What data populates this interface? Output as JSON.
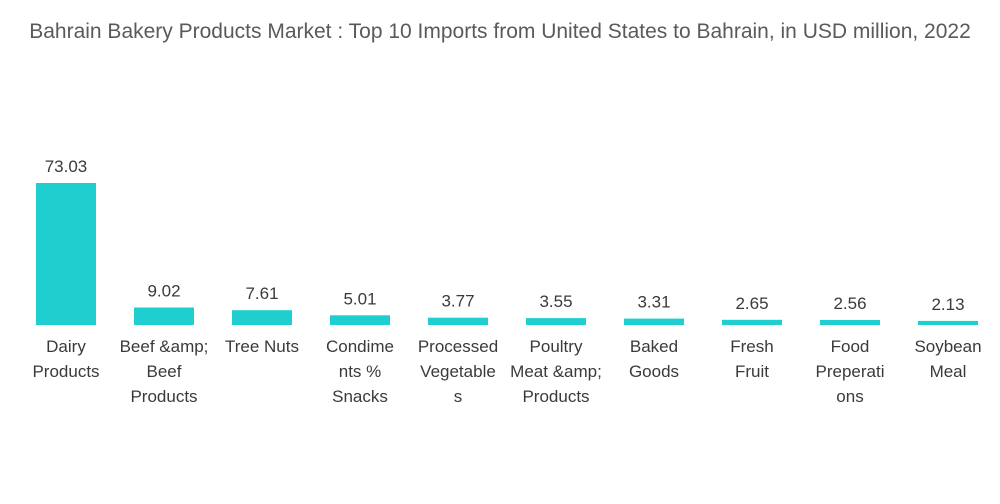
{
  "chart_data": {
    "type": "bar",
    "title": "Bahrain Bakery Products Market : Top 10 Imports from United States to Bahrain, in USD million, 2022",
    "xlabel": "",
    "ylabel": "",
    "ylim": [
      0,
      73.03
    ],
    "grid": false,
    "legend": "none",
    "bar_color": "#1fcfcf",
    "categories": [
      [
        "Dairy",
        "Products"
      ],
      [
        "Beef &amp;",
        "Beef",
        "Products"
      ],
      [
        "Tree Nuts"
      ],
      [
        "Condime",
        "nts %",
        "Snacks"
      ],
      [
        "Processed",
        "Vegetable",
        "s"
      ],
      [
        "Poultry",
        "Meat &amp;",
        "Products"
      ],
      [
        "Baked",
        "Goods"
      ],
      [
        "Fresh",
        "Fruit"
      ],
      [
        "Food",
        "Preperati",
        "ons"
      ],
      [
        "Soybean",
        "Meal"
      ]
    ],
    "values": [
      73.03,
      9.02,
      7.61,
      5.01,
      3.77,
      3.55,
      3.31,
      2.65,
      2.56,
      2.13
    ],
    "value_labels": [
      "73.03",
      "9.02",
      "7.61",
      "5.01",
      "3.77",
      "3.55",
      "3.31",
      "2.65",
      "2.56",
      "2.13"
    ]
  }
}
